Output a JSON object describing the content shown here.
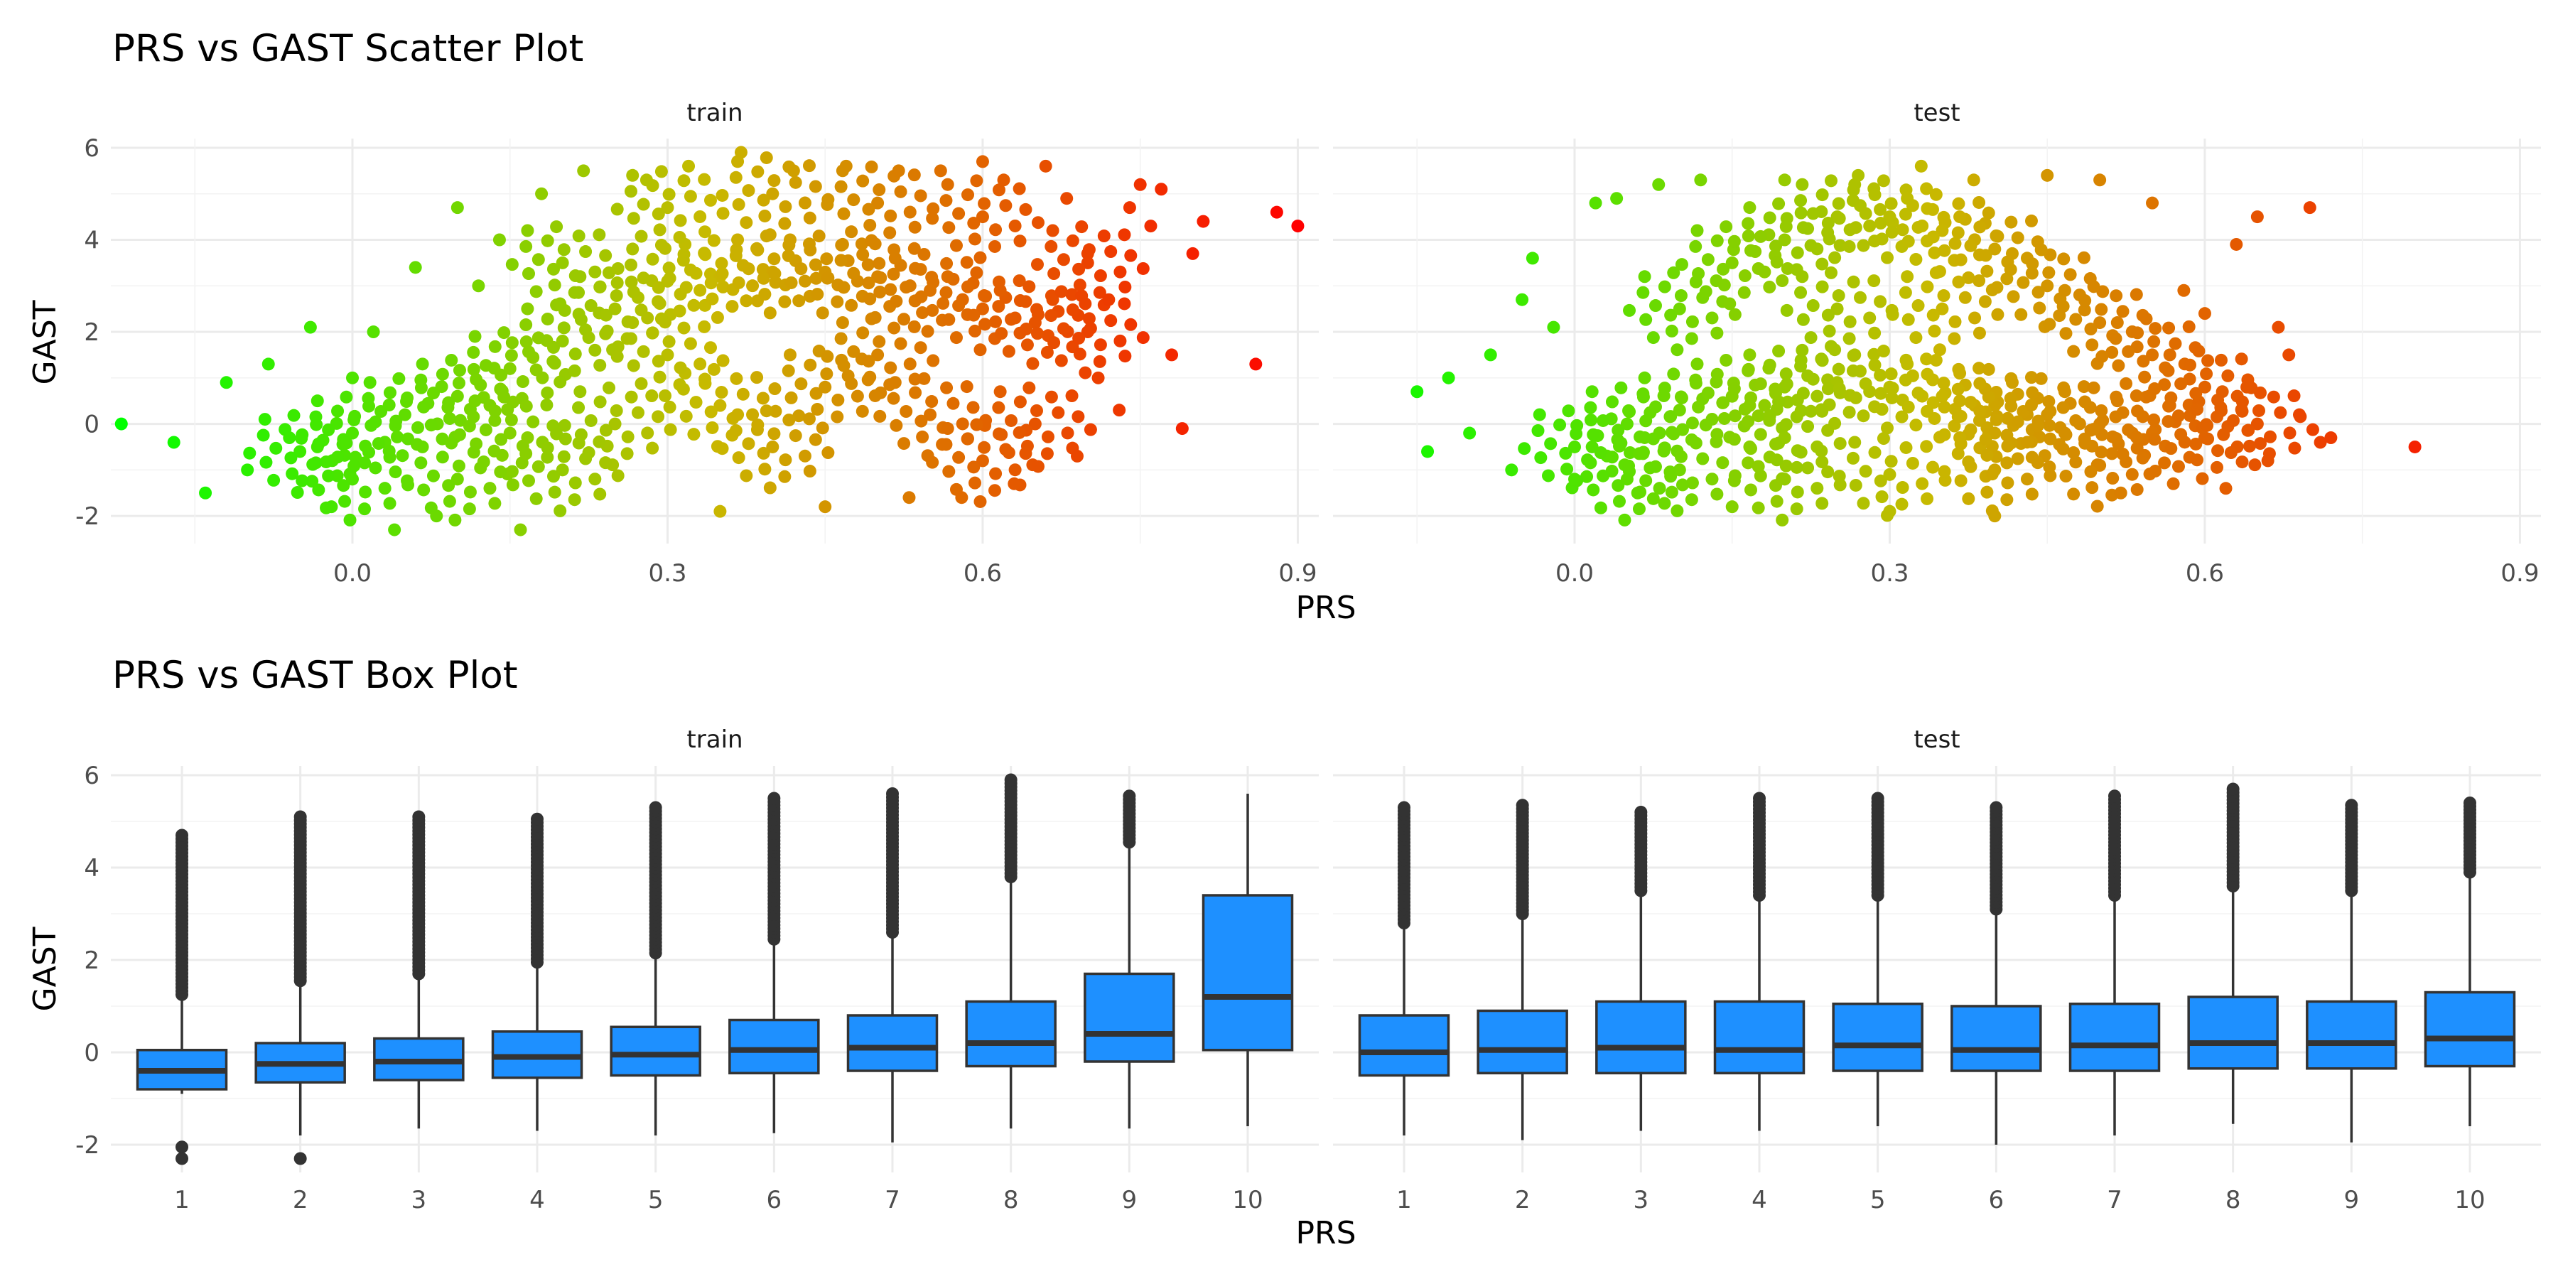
{
  "chart_data": [
    {
      "type": "scatter",
      "title": "PRS vs GAST Scatter Plot",
      "xlabel": "PRS",
      "ylabel": "GAST",
      "xlim": [
        -0.23,
        0.92
      ],
      "ylim": [
        -2.6,
        6.2
      ],
      "x_ticks": [
        "0.0",
        "0.3",
        "0.6",
        "0.9"
      ],
      "y_ticks": [
        "-2",
        "0",
        "2",
        "4",
        "6"
      ],
      "color_scale": {
        "low": "#00ff00",
        "high": "#ff0000",
        "mapped_to": "PRS"
      },
      "grid": true,
      "legend": "none",
      "panels": [
        {
          "label": "train",
          "cloud": [
            [
              -0.05,
              -0.6
            ],
            [
              0.0,
              -0.2
            ],
            [
              0.05,
              0.2
            ],
            [
              0.1,
              0.6
            ],
            [
              0.15,
              1.2
            ],
            [
              0.2,
              1.8
            ],
            [
              0.25,
              2.5
            ],
            [
              0.3,
              3.1
            ],
            [
              0.35,
              3.2
            ],
            [
              0.4,
              3.3
            ],
            [
              0.45,
              3.3
            ],
            [
              0.5,
              3.2
            ],
            [
              0.55,
              2.9
            ],
            [
              0.6,
              2.5
            ],
            [
              0.65,
              2.2
            ],
            [
              0.7,
              2.0
            ],
            [
              0.45,
              0.8
            ],
            [
              0.35,
              0.4
            ],
            [
              0.25,
              0.0
            ],
            [
              0.15,
              -0.2
            ],
            [
              0.3,
              1.5
            ],
            [
              0.5,
              1.5
            ],
            [
              0.4,
              -0.5
            ],
            [
              0.2,
              -1.0
            ],
            [
              0.55,
              0.2
            ],
            [
              0.6,
              4.5
            ],
            [
              0.5,
              4.8
            ],
            [
              0.4,
              5.0
            ],
            [
              0.3,
              4.7
            ],
            [
              0.2,
              3.5
            ],
            [
              0.1,
              -1.2
            ],
            [
              0.65,
              0.0
            ],
            [
              0.7,
              3.5
            ],
            [
              0.0,
              -1.2
            ],
            [
              0.6,
              -0.8
            ]
          ],
          "points": [
            [
              -0.22,
              0.0
            ],
            [
              -0.17,
              -0.4
            ],
            [
              -0.14,
              -1.5
            ],
            [
              -0.12,
              0.9
            ],
            [
              -0.1,
              -1.0
            ],
            [
              -0.08,
              1.3
            ],
            [
              -0.06,
              -0.3
            ],
            [
              -0.04,
              2.1
            ],
            [
              -0.02,
              -1.8
            ],
            [
              0.0,
              1.0
            ],
            [
              0.02,
              2.0
            ],
            [
              0.04,
              -2.3
            ],
            [
              0.06,
              3.4
            ],
            [
              0.08,
              -2.0
            ],
            [
              0.1,
              4.7
            ],
            [
              0.12,
              3.0
            ],
            [
              0.14,
              4.0
            ],
            [
              0.16,
              -2.3
            ],
            [
              0.18,
              5.0
            ],
            [
              0.22,
              5.5
            ],
            [
              0.28,
              5.3
            ],
            [
              0.32,
              5.6
            ],
            [
              0.37,
              5.9
            ],
            [
              0.42,
              5.5
            ],
            [
              0.47,
              5.6
            ],
            [
              0.52,
              5.5
            ],
            [
              0.56,
              5.5
            ],
            [
              0.6,
              5.7
            ],
            [
              0.62,
              5.3
            ],
            [
              0.66,
              5.6
            ],
            [
              0.68,
              4.9
            ],
            [
              0.7,
              3.7
            ],
            [
              0.72,
              2.7
            ],
            [
              0.73,
              0.3
            ],
            [
              0.74,
              4.7
            ],
            [
              0.75,
              5.2
            ],
            [
              0.76,
              4.3
            ],
            [
              0.77,
              5.1
            ],
            [
              0.78,
              1.5
            ],
            [
              0.79,
              -0.1
            ],
            [
              0.8,
              3.7
            ],
            [
              0.81,
              4.4
            ],
            [
              0.69,
              -0.7
            ],
            [
              0.71,
              1.0
            ],
            [
              0.63,
              -1.3
            ],
            [
              0.58,
              -1.6
            ],
            [
              0.53,
              -1.6
            ],
            [
              0.45,
              -1.8
            ],
            [
              0.35,
              -1.9
            ],
            [
              0.86,
              1.3
            ],
            [
              0.88,
              4.6
            ],
            [
              0.9,
              4.3
            ]
          ]
        },
        {
          "label": "test",
          "cloud": [
            [
              0.0,
              -0.5
            ],
            [
              0.05,
              0.0
            ],
            [
              0.1,
              0.3
            ],
            [
              0.15,
              0.6
            ],
            [
              0.2,
              0.8
            ],
            [
              0.25,
              0.9
            ],
            [
              0.3,
              0.8
            ],
            [
              0.35,
              0.6
            ],
            [
              0.4,
              0.4
            ],
            [
              0.45,
              0.2
            ],
            [
              0.5,
              0.0
            ],
            [
              0.55,
              -0.2
            ],
            [
              0.6,
              -0.3
            ],
            [
              0.1,
              -1.0
            ],
            [
              0.2,
              -1.2
            ],
            [
              0.3,
              -1.1
            ],
            [
              0.4,
              -1.0
            ],
            [
              0.5,
              -0.9
            ],
            [
              0.1,
              2.5
            ],
            [
              0.15,
              3.5
            ],
            [
              0.2,
              4.0
            ],
            [
              0.25,
              4.5
            ],
            [
              0.3,
              4.5
            ],
            [
              0.35,
              4.2
            ],
            [
              0.4,
              3.8
            ],
            [
              0.45,
              3.0
            ],
            [
              0.5,
              2.2
            ],
            [
              0.55,
              1.5
            ],
            [
              0.6,
              0.8
            ],
            [
              0.25,
              2.5
            ],
            [
              0.35,
              2.5
            ],
            [
              0.05,
              -1.2
            ],
            [
              0.65,
              0.0
            ],
            [
              0.2,
              -0.3
            ],
            [
              0.4,
              -0.2
            ]
          ],
          "points": [
            [
              -0.15,
              0.7
            ],
            [
              -0.14,
              -0.6
            ],
            [
              -0.12,
              1.0
            ],
            [
              -0.1,
              -0.2
            ],
            [
              -0.08,
              1.5
            ],
            [
              -0.06,
              -1.0
            ],
            [
              -0.05,
              2.7
            ],
            [
              -0.04,
              3.6
            ],
            [
              -0.02,
              2.1
            ],
            [
              0.0,
              -1.2
            ],
            [
              0.02,
              4.8
            ],
            [
              0.04,
              4.9
            ],
            [
              0.06,
              -1.5
            ],
            [
              0.08,
              5.2
            ],
            [
              0.12,
              5.3
            ],
            [
              0.15,
              -1.8
            ],
            [
              0.2,
              5.3
            ],
            [
              0.27,
              5.4
            ],
            [
              0.3,
              -1.9
            ],
            [
              0.33,
              5.6
            ],
            [
              0.38,
              5.3
            ],
            [
              0.4,
              -2.0
            ],
            [
              0.45,
              5.4
            ],
            [
              0.5,
              5.3
            ],
            [
              0.52,
              -1.5
            ],
            [
              0.55,
              4.8
            ],
            [
              0.57,
              -1.3
            ],
            [
              0.58,
              2.9
            ],
            [
              0.6,
              2.4
            ],
            [
              0.62,
              -1.4
            ],
            [
              0.63,
              3.9
            ],
            [
              0.64,
              0.8
            ],
            [
              0.65,
              4.5
            ],
            [
              0.66,
              -0.8
            ],
            [
              0.67,
              2.1
            ],
            [
              0.68,
              1.5
            ],
            [
              0.69,
              0.2
            ],
            [
              0.7,
              4.7
            ],
            [
              0.71,
              -0.4
            ],
            [
              0.72,
              -0.3
            ],
            [
              0.8,
              -0.5
            ]
          ]
        }
      ]
    },
    {
      "type": "box",
      "title": "PRS vs GAST Box Plot",
      "xlabel": "PRS",
      "ylabel": "GAST",
      "categories": [
        "1",
        "2",
        "3",
        "4",
        "5",
        "6",
        "7",
        "8",
        "9",
        "10"
      ],
      "ylim": [
        -2.6,
        6.2
      ],
      "y_ticks": [
        "-2",
        "0",
        "2",
        "4",
        "6"
      ],
      "box_color": "#1e90ff",
      "outlier_color": "#333333",
      "grid": true,
      "legend": "none",
      "panels": [
        {
          "label": "train",
          "boxes": [
            {
              "min": -0.9,
              "q1": -0.8,
              "median": -0.4,
              "q3": 0.05,
              "max": 1.2,
              "outliers_high": [
                1.25,
                4.7
              ],
              "outliers_low": [
                -2.05,
                -2.3
              ]
            },
            {
              "min": -1.8,
              "q1": -0.65,
              "median": -0.25,
              "q3": 0.2,
              "max": 1.5,
              "outliers_high": [
                1.55,
                5.1
              ],
              "outliers_low": [
                -2.3
              ]
            },
            {
              "min": -1.65,
              "q1": -0.6,
              "median": -0.2,
              "q3": 0.3,
              "max": 1.6,
              "outliers_high": [
                1.7,
                5.1
              ],
              "outliers_low": []
            },
            {
              "min": -1.7,
              "q1": -0.55,
              "median": -0.1,
              "q3": 0.45,
              "max": 1.9,
              "outliers_high": [
                1.95,
                5.05
              ],
              "outliers_low": []
            },
            {
              "min": -1.8,
              "q1": -0.5,
              "median": -0.05,
              "q3": 0.55,
              "max": 2.1,
              "outliers_high": [
                2.15,
                5.3
              ],
              "outliers_low": []
            },
            {
              "min": -1.75,
              "q1": -0.45,
              "median": 0.05,
              "q3": 0.7,
              "max": 2.4,
              "outliers_high": [
                2.45,
                5.5
              ],
              "outliers_low": []
            },
            {
              "min": -1.95,
              "q1": -0.4,
              "median": 0.1,
              "q3": 0.8,
              "max": 2.55,
              "outliers_high": [
                2.6,
                5.6
              ],
              "outliers_low": []
            },
            {
              "min": -1.65,
              "q1": -0.3,
              "median": 0.2,
              "q3": 1.1,
              "max": 3.75,
              "outliers_high": [
                3.8,
                5.9
              ],
              "outliers_low": []
            },
            {
              "min": -1.65,
              "q1": -0.2,
              "median": 0.4,
              "q3": 1.7,
              "max": 4.5,
              "outliers_high": [
                4.55,
                5.55
              ],
              "outliers_low": []
            },
            {
              "min": -1.6,
              "q1": 0.05,
              "median": 1.2,
              "q3": 3.4,
              "max": 5.6,
              "outliers_high": [],
              "outliers_low": []
            }
          ]
        },
        {
          "label": "test",
          "boxes": [
            {
              "min": -1.8,
              "q1": -0.5,
              "median": 0.0,
              "q3": 0.8,
              "max": 2.7,
              "outliers_high": [
                2.8,
                5.3
              ],
              "outliers_low": []
            },
            {
              "min": -1.9,
              "q1": -0.45,
              "median": 0.05,
              "q3": 0.9,
              "max": 2.9,
              "outliers_high": [
                3.0,
                5.35
              ],
              "outliers_low": []
            },
            {
              "min": -1.7,
              "q1": -0.45,
              "median": 0.1,
              "q3": 1.1,
              "max": 3.4,
              "outliers_high": [
                3.5,
                5.2
              ],
              "outliers_low": []
            },
            {
              "min": -1.7,
              "q1": -0.45,
              "median": 0.05,
              "q3": 1.1,
              "max": 3.35,
              "outliers_high": [
                3.4,
                5.5
              ],
              "outliers_low": []
            },
            {
              "min": -1.6,
              "q1": -0.4,
              "median": 0.15,
              "q3": 1.05,
              "max": 3.3,
              "outliers_high": [
                3.4,
                5.5
              ],
              "outliers_low": []
            },
            {
              "min": -2.0,
              "q1": -0.4,
              "median": 0.05,
              "q3": 1.0,
              "max": 3.0,
              "outliers_high": [
                3.1,
                5.3
              ],
              "outliers_low": []
            },
            {
              "min": -1.8,
              "q1": -0.4,
              "median": 0.15,
              "q3": 1.05,
              "max": 3.3,
              "outliers_high": [
                3.4,
                5.55
              ],
              "outliers_low": []
            },
            {
              "min": -1.55,
              "q1": -0.35,
              "median": 0.2,
              "q3": 1.2,
              "max": 3.5,
              "outliers_high": [
                3.6,
                5.7
              ],
              "outliers_low": []
            },
            {
              "min": -1.95,
              "q1": -0.35,
              "median": 0.2,
              "q3": 1.1,
              "max": 3.4,
              "outliers_high": [
                3.5,
                5.35
              ],
              "outliers_low": []
            },
            {
              "min": -1.6,
              "q1": -0.3,
              "median": 0.3,
              "q3": 1.3,
              "max": 3.8,
              "outliers_high": [
                3.9,
                5.4
              ],
              "outliers_low": []
            }
          ]
        }
      ]
    }
  ]
}
